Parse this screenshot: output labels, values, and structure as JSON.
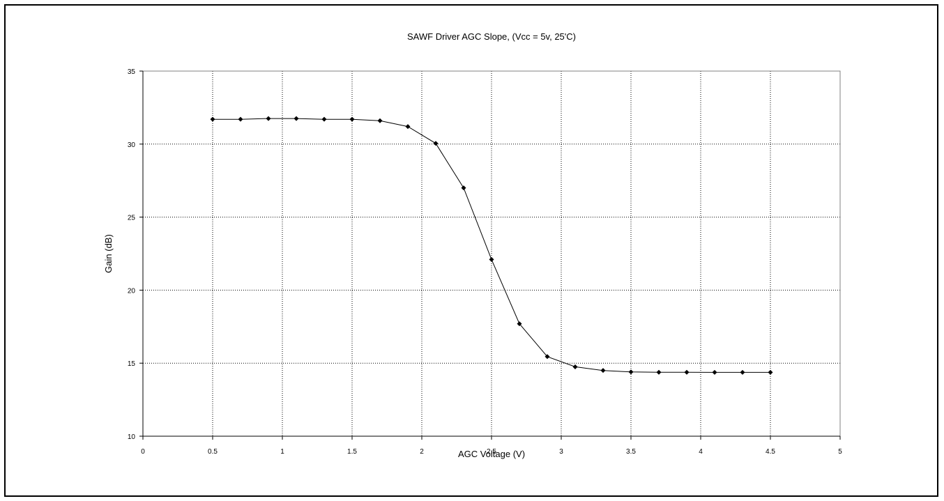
{
  "chart_data": {
    "type": "line",
    "title": "SAWF Driver AGC Slope, (Vcc = 5v, 25'C)",
    "xlabel": "AGC Voltage (V)",
    "ylabel": "Gain (dB)",
    "xlim": [
      0,
      5
    ],
    "ylim": [
      10,
      35
    ],
    "x_ticks": [
      0,
      0.5,
      1,
      1.5,
      2,
      2.5,
      3,
      3.5,
      4,
      4.5,
      5
    ],
    "x_tick_labels": [
      "0",
      "0.5",
      "1",
      "1.5",
      "2",
      "2.5",
      "3",
      "3.5",
      "4",
      "4.5",
      "5"
    ],
    "y_ticks": [
      10,
      15,
      20,
      25,
      30,
      35
    ],
    "y_tick_labels": [
      "10",
      "15",
      "20",
      "25",
      "30",
      "35"
    ],
    "grid": true,
    "legend": "none",
    "colors": {
      "line": "#000000",
      "marker": "#000000",
      "grid": "#000000",
      "plot_border": "#808080"
    },
    "series": [
      {
        "x": [
          0.5,
          0.7,
          0.9,
          1.1,
          1.3,
          1.5,
          1.7,
          1.9,
          2.1,
          2.3,
          2.5,
          2.7,
          2.9,
          3.1,
          3.3,
          3.5,
          3.7,
          3.9,
          4.1,
          4.3,
          4.5
        ],
        "y": [
          31.7,
          31.7,
          31.75,
          31.75,
          31.7,
          31.7,
          31.6,
          31.2,
          30.05,
          27.0,
          22.1,
          17.7,
          15.45,
          14.75,
          14.5,
          14.4,
          14.38,
          14.38,
          14.37,
          14.37,
          14.37
        ]
      }
    ]
  }
}
